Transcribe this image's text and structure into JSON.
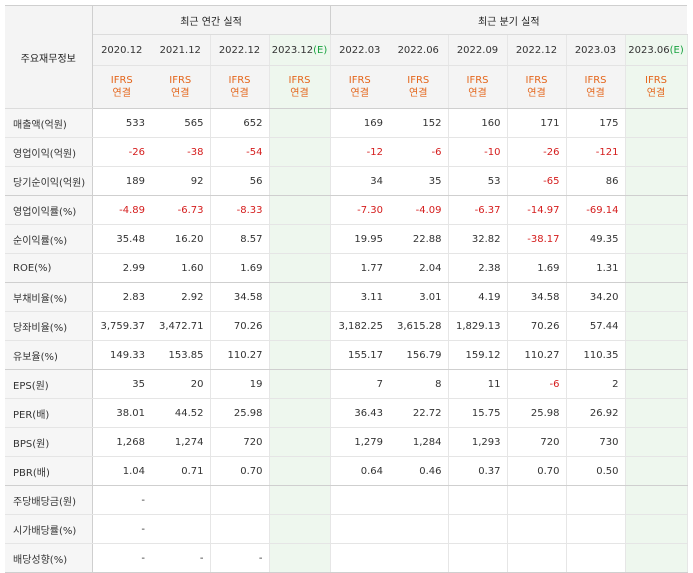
{
  "header": {
    "row_label": "주요재무정보",
    "annual_title": "최근 연간 실적",
    "quarterly_title": "최근 분기 실적"
  },
  "periods": [
    {
      "label": "2020.12",
      "est": ""
    },
    {
      "label": "2021.12",
      "est": ""
    },
    {
      "label": "2022.12",
      "est": ""
    },
    {
      "label": "2023.12",
      "est": "(E)"
    },
    {
      "label": "2022.03",
      "est": ""
    },
    {
      "label": "2022.06",
      "est": ""
    },
    {
      "label": "2022.09",
      "est": ""
    },
    {
      "label": "2022.12",
      "est": ""
    },
    {
      "label": "2023.03",
      "est": ""
    },
    {
      "label": "2023.06",
      "est": "(E)"
    }
  ],
  "ifrs": {
    "line1": "IFRS",
    "line2": "연결"
  },
  "rows": [
    {
      "label": "매출액(억원)",
      "values": [
        "533",
        "565",
        "652",
        "",
        "169",
        "152",
        "160",
        "171",
        "175",
        ""
      ]
    },
    {
      "label": "영업이익(억원)",
      "values": [
        "-26",
        "-38",
        "-54",
        "",
        "-12",
        "-6",
        "-10",
        "-26",
        "-121",
        ""
      ]
    },
    {
      "label": "당기순이익(억원)",
      "values": [
        "189",
        "92",
        "56",
        "",
        "34",
        "35",
        "53",
        "-65",
        "86",
        ""
      ]
    },
    {
      "label": "영업이익률(%)",
      "values": [
        "-4.89",
        "-6.73",
        "-8.33",
        "",
        "-7.30",
        "-4.09",
        "-6.37",
        "-14.97",
        "-69.14",
        ""
      ]
    },
    {
      "label": "순이익률(%)",
      "values": [
        "35.48",
        "16.20",
        "8.57",
        "",
        "19.95",
        "22.88",
        "32.82",
        "-38.17",
        "49.35",
        ""
      ]
    },
    {
      "label": "ROE(%)",
      "values": [
        "2.99",
        "1.60",
        "1.69",
        "",
        "1.77",
        "2.04",
        "2.38",
        "1.69",
        "1.31",
        ""
      ]
    },
    {
      "label": "부채비율(%)",
      "values": [
        "2.83",
        "2.92",
        "34.58",
        "",
        "3.11",
        "3.01",
        "4.19",
        "34.58",
        "34.20",
        ""
      ]
    },
    {
      "label": "당좌비율(%)",
      "values": [
        "3,759.37",
        "3,472.71",
        "70.26",
        "",
        "3,182.25",
        "3,615.28",
        "1,829.13",
        "70.26",
        "57.44",
        ""
      ]
    },
    {
      "label": "유보율(%)",
      "values": [
        "149.33",
        "153.85",
        "110.27",
        "",
        "155.17",
        "156.79",
        "159.12",
        "110.27",
        "110.35",
        ""
      ]
    },
    {
      "label": "EPS(원)",
      "values": [
        "35",
        "20",
        "19",
        "",
        "7",
        "8",
        "11",
        "-6",
        "2",
        ""
      ]
    },
    {
      "label": "PER(배)",
      "values": [
        "38.01",
        "44.52",
        "25.98",
        "",
        "36.43",
        "22.72",
        "15.75",
        "25.98",
        "26.92",
        ""
      ]
    },
    {
      "label": "BPS(원)",
      "values": [
        "1,268",
        "1,274",
        "720",
        "",
        "1,279",
        "1,284",
        "1,293",
        "720",
        "730",
        ""
      ]
    },
    {
      "label": "PBR(배)",
      "values": [
        "1.04",
        "0.71",
        "0.70",
        "",
        "0.64",
        "0.46",
        "0.37",
        "0.70",
        "0.50",
        ""
      ]
    },
    {
      "label": "주당배당금(원)",
      "values": [
        "-",
        "",
        "",
        "",
        "",
        "",
        "",
        "",
        "",
        ""
      ]
    },
    {
      "label": "시가배당률(%)",
      "values": [
        "-",
        "",
        "",
        "",
        "",
        "",
        "",
        "",
        "",
        ""
      ]
    },
    {
      "label": "배당성향(%)",
      "values": [
        "-",
        "-",
        "-",
        "",
        "",
        "",
        "",
        "",
        "",
        ""
      ]
    }
  ]
}
